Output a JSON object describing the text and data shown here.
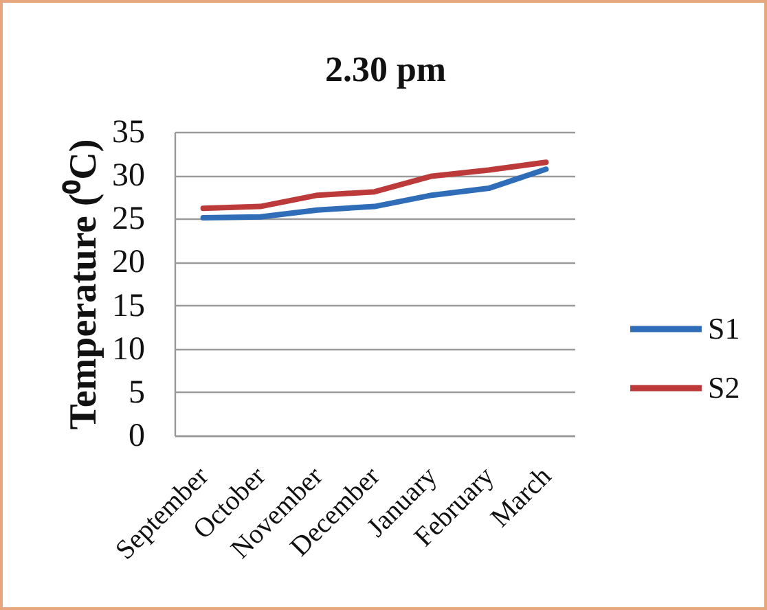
{
  "chart_data": {
    "type": "line",
    "title": "2.30 pm",
    "ylabel": "Temperature  (⁰C)",
    "categories": [
      "September",
      "October",
      "November",
      "December",
      "January",
      "February",
      "March"
    ],
    "series": [
      {
        "name": "S1",
        "color": "#2f6db8",
        "values": [
          25.1,
          25.2,
          26.0,
          26.4,
          27.7,
          28.5,
          30.7
        ]
      },
      {
        "name": "S2",
        "color": "#bd3a3a",
        "values": [
          26.2,
          26.4,
          27.7,
          28.1,
          29.9,
          30.6,
          31.5
        ]
      }
    ],
    "ylim": [
      0,
      35
    ],
    "yticks": [
      0,
      5,
      10,
      15,
      20,
      25,
      30,
      35
    ],
    "grid": "y",
    "legend": "right"
  }
}
